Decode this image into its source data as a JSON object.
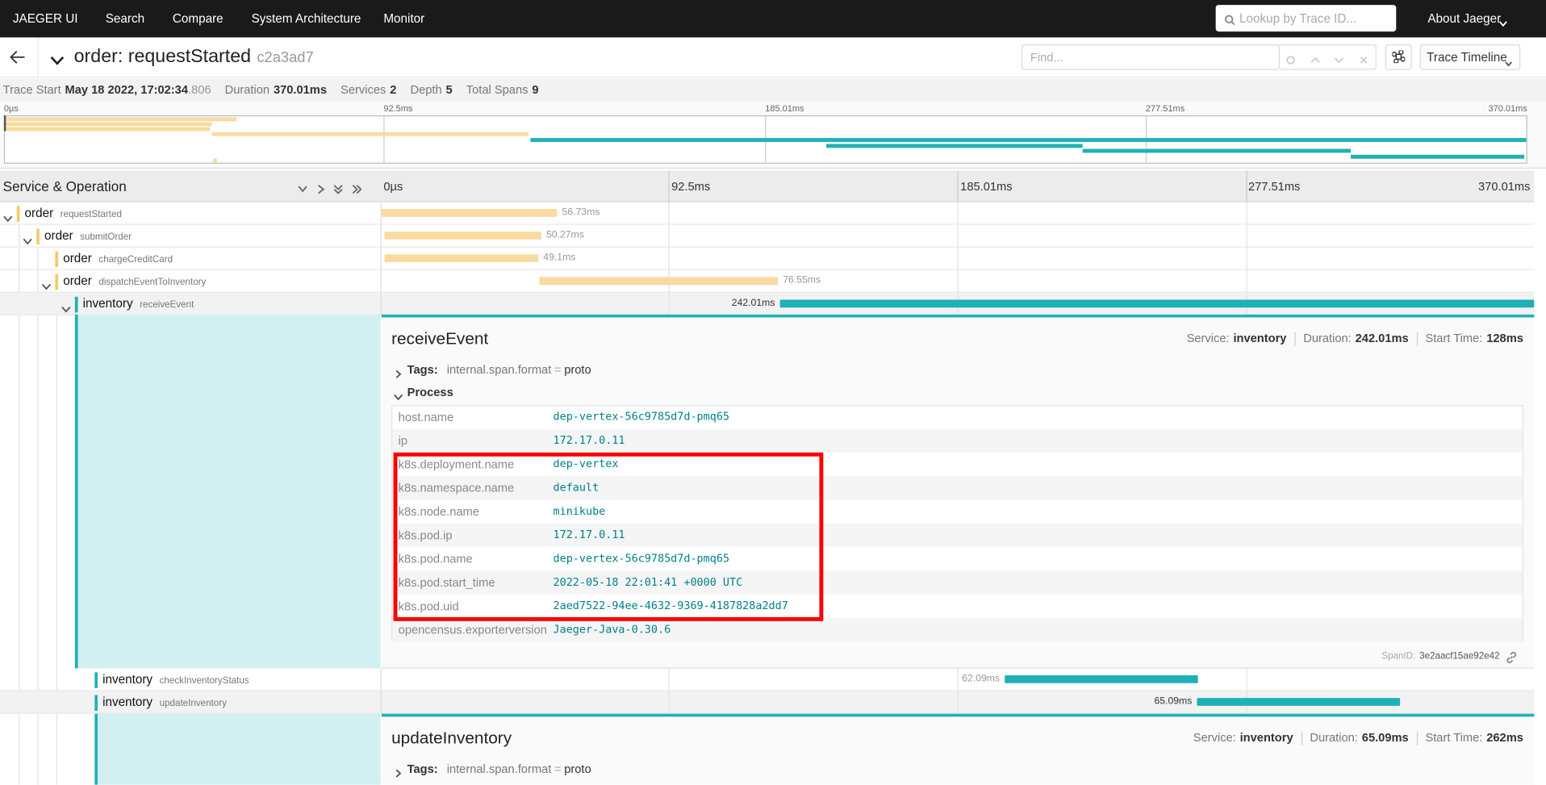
{
  "nav": {
    "brand": "JAEGER UI",
    "links": [
      "Search",
      "Compare",
      "System Architecture",
      "Monitor"
    ],
    "search_placeholder": "Lookup by Trace ID...",
    "about": "About Jaeger"
  },
  "trace": {
    "title": "order: requestStarted",
    "id": "c2a3ad7",
    "find_placeholder": "Find...",
    "view": "Trace Timeline",
    "stats": [
      {
        "label": "Trace Start",
        "value": "May 18 2022, 17:02:34",
        "value_suffix": ".806"
      },
      {
        "label": "Duration",
        "value": "370.01ms"
      },
      {
        "label": "Services",
        "value": 2
      },
      {
        "label": "Depth",
        "value": 5
      },
      {
        "label": "Total Spans",
        "value": 9
      }
    ]
  },
  "ticks": [
    "0µs",
    "92.5ms",
    "185.01ms",
    "277.51ms",
    "370.01ms"
  ],
  "timeline": {
    "header": "Service & Operation"
  },
  "spans": [
    {
      "service": "order",
      "operation": "requestStarted",
      "duration": "56.73ms"
    },
    {
      "service": "order",
      "operation": "submitOrder",
      "duration": "50.27ms"
    },
    {
      "service": "order",
      "operation": "chargeCreditCard",
      "duration": "49.1ms"
    },
    {
      "service": "order",
      "operation": "dispatchEventToInventory",
      "duration": "76.55ms"
    },
    {
      "service": "inventory",
      "operation": "receiveEvent",
      "duration": "242.01ms"
    },
    {
      "service": "inventory",
      "operation": "checkInventoryStatus",
      "duration": "62.09ms"
    },
    {
      "service": "inventory",
      "operation": "updateInventory",
      "duration": "65.09ms"
    }
  ],
  "labels": {
    "service": "Service:",
    "duration": "Duration:",
    "start_time": "Start Time:",
    "tags": "Tags:",
    "process": "Process",
    "span_id": "SpanID:",
    "separator": "="
  },
  "details": [
    {
      "operation": "receiveEvent",
      "service": "inventory",
      "duration": "242.01ms",
      "start_time": "128ms",
      "tag": {
        "key": "internal.span.format",
        "value": "proto"
      },
      "process": [
        [
          "host.name",
          "dep-vertex-56c9785d7d-pmq65"
        ],
        [
          "ip",
          "172.17.0.11"
        ],
        [
          "k8s.deployment.name",
          "dep-vertex"
        ],
        [
          "k8s.namespace.name",
          "default"
        ],
        [
          "k8s.node.name",
          "minikube"
        ],
        [
          "k8s.pod.ip",
          "172.17.0.11"
        ],
        [
          "k8s.pod.name",
          "dep-vertex-56c9785d7d-pmq65"
        ],
        [
          "k8s.pod.start_time",
          "2022-05-18 22:01:41 +0000 UTC"
        ],
        [
          "k8s.pod.uid",
          "2aed7522-94ee-4632-9369-4187828a2dd7"
        ],
        [
          "opencensus.exporterversion",
          "Jaeger-Java-0.30.6"
        ]
      ],
      "span_id": "3e2aacf15ae92e42"
    },
    {
      "operation": "updateInventory",
      "service": "inventory",
      "duration": "65.09ms",
      "start_time": "262ms",
      "tag": {
        "key": "internal.span.format",
        "value": "proto"
      }
    }
  ]
}
